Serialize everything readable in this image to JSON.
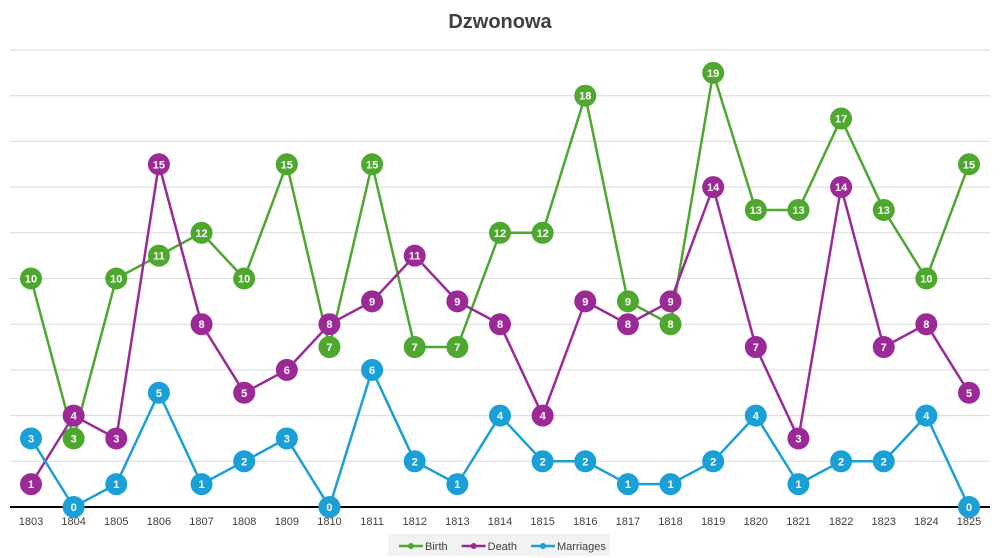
{
  "chart_data": {
    "type": "line",
    "title": "Dzwonowa",
    "xlabel": "",
    "ylabel": "",
    "ylim": [
      0,
      20
    ],
    "grid": true,
    "legend": "bottom",
    "categories": [
      "1803",
      "1804",
      "1805",
      "1806",
      "1807",
      "1808",
      "1809",
      "1810",
      "1811",
      "1812",
      "1813",
      "1814",
      "1815",
      "1816",
      "1817",
      "1818",
      "1819",
      "1820",
      "1821",
      "1822",
      "1823",
      "1824",
      "1825"
    ],
    "series": [
      {
        "name": "Birth",
        "color": "#4ea72e",
        "values": [
          10,
          3,
          10,
          11,
          12,
          10,
          15,
          7,
          15,
          7,
          7,
          12,
          12,
          18,
          9,
          8,
          19,
          13,
          13,
          17,
          13,
          10,
          15
        ]
      },
      {
        "name": "Death",
        "color": "#9b2a96",
        "values": [
          1,
          4,
          3,
          15,
          8,
          5,
          6,
          8,
          9,
          11,
          9,
          8,
          4,
          9,
          8,
          9,
          14,
          7,
          3,
          14,
          7,
          8,
          5
        ]
      },
      {
        "name": "Marriages",
        "color": "#1a9fd6",
        "values": [
          3,
          0,
          1,
          5,
          1,
          2,
          3,
          0,
          6,
          2,
          1,
          4,
          2,
          2,
          1,
          1,
          2,
          4,
          1,
          2,
          2,
          4,
          0
        ]
      }
    ]
  }
}
